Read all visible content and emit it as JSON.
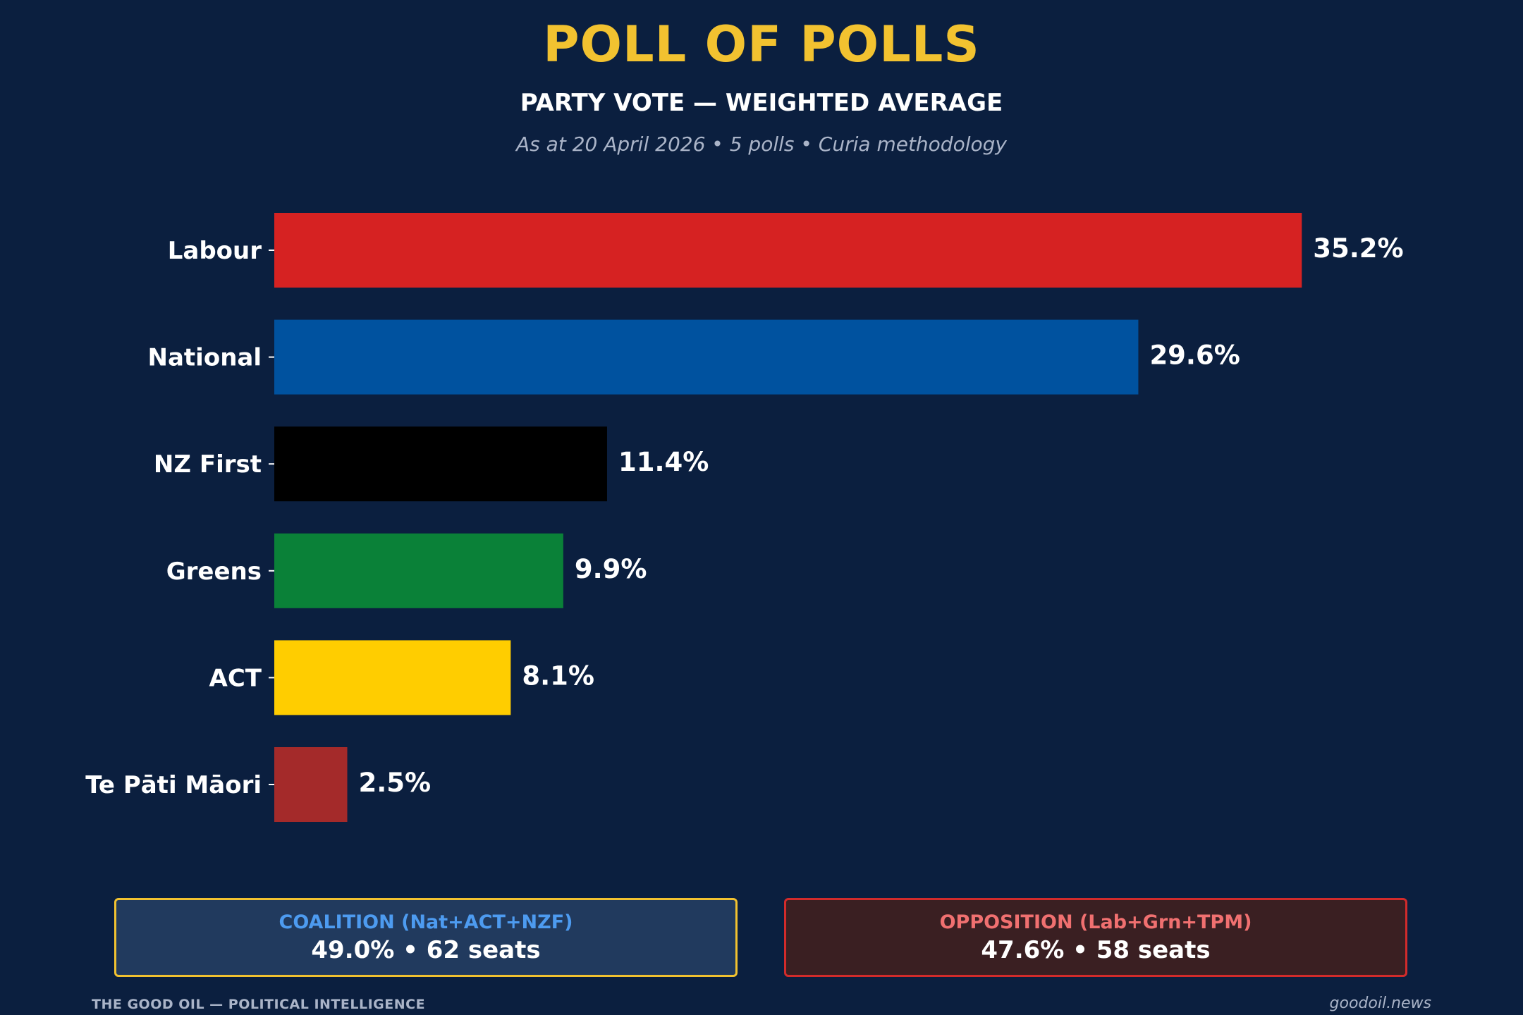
{
  "header": {
    "title": "POLL OF POLLS",
    "subtitle": "PARTY VOTE — WEIGHTED AVERAGE",
    "meta": "As at 20 April 2026  •  5 polls  •  Curia methodology"
  },
  "chart_data": {
    "type": "bar",
    "orientation": "horizontal",
    "categories": [
      "Labour",
      "National",
      "NZ First",
      "Greens",
      "ACT",
      "Te Pāti Māori"
    ],
    "values": [
      35.2,
      29.6,
      11.4,
      9.9,
      8.1,
      2.5
    ],
    "value_labels": [
      "35.2%",
      "29.6%",
      "11.4%",
      "9.9%",
      "8.1%",
      "2.5%"
    ],
    "colors": [
      "#d62222",
      "#00529f",
      "#000000",
      "#0a8138",
      "#ffcd00",
      "#a42a2a"
    ],
    "unit": "%",
    "xlim": [
      0,
      40
    ],
    "grid": false
  },
  "summary": {
    "coalition": {
      "label": "COALITION (Nat+ACT+NZF)",
      "stats": "49.0%  •  62 seats"
    },
    "opposition": {
      "label": "OPPOSITION (Lab+Grn+TPM)",
      "stats": "47.6%  •  58 seats"
    }
  },
  "footer": {
    "left": "THE GOOD OIL — POLITICAL INTELLIGENCE",
    "right": "goodoil.news"
  },
  "colors": {
    "background": "#0b1f3f",
    "title": "#f2c230",
    "coalition_border": "#f2c230",
    "opposition_border": "#d22b2b"
  }
}
